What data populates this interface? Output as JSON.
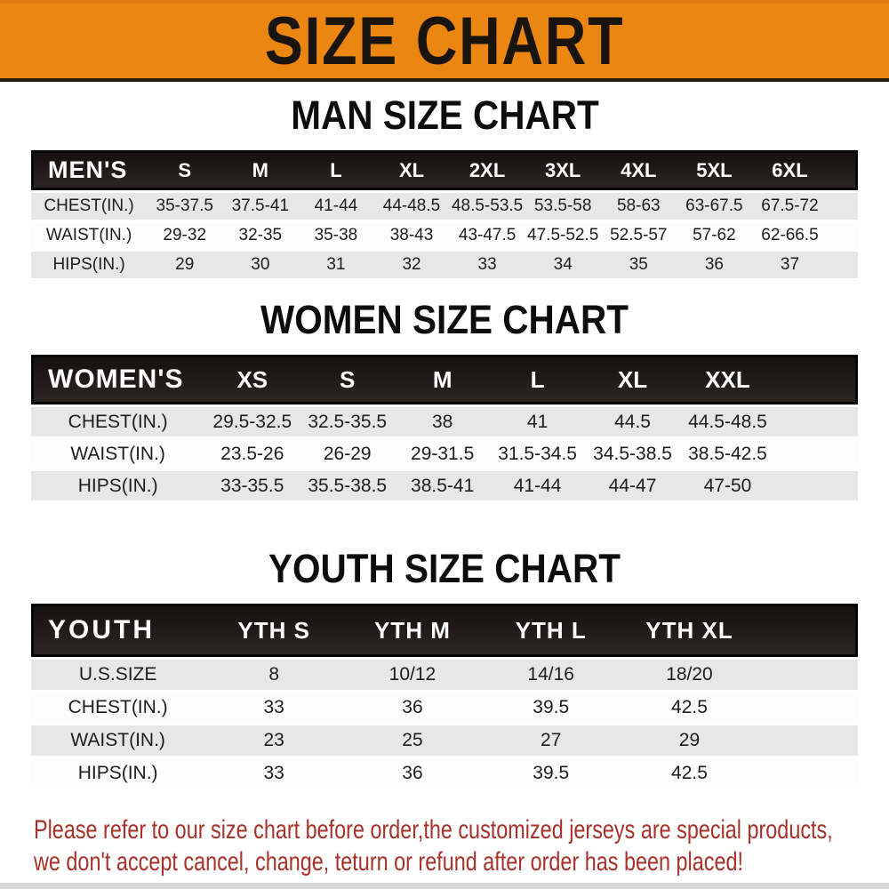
{
  "banner": {
    "title": "SIZE CHART",
    "bg_color": "#ec8612",
    "text_color": "#1a140f"
  },
  "colors": {
    "table_header_bg": "#1d1816",
    "row_gray": "#e7e7e7",
    "row_white": "#fcfcfc",
    "disclaimer_red": "#a63229"
  },
  "sections": [
    {
      "heading": "MAN SIZE CHART",
      "table": {
        "header": [
          "MEN'S",
          "S",
          "M",
          "L",
          "XL",
          "2XL",
          "3XL",
          "4XL",
          "5XL",
          "6XL"
        ],
        "rows": [
          [
            "CHEST(IN.)",
            "35-37.5",
            "37.5-41",
            "41-44",
            "44-48.5",
            "48.5-53.5",
            "53.5-58",
            "58-63",
            "63-67.5",
            "67.5-72"
          ],
          [
            "WAIST(IN.)",
            "29-32",
            "32-35",
            "35-38",
            "38-43",
            "43-47.5",
            "47.5-52.5",
            "52.5-57",
            "57-62",
            "62-66.5"
          ],
          [
            "HIPS(IN.)",
            "29",
            "30",
            "31",
            "32",
            "33",
            "34",
            "35",
            "36",
            "37"
          ]
        ]
      }
    },
    {
      "heading": "WOMEN SIZE CHART",
      "table": {
        "header": [
          "WOMEN'S",
          "XS",
          "S",
          "M",
          "L",
          "XL",
          "XXL"
        ],
        "rows": [
          [
            "CHEST(IN.)",
            "29.5-32.5",
            "32.5-35.5",
            "38",
            "41",
            "44.5",
            "44.5-48.5"
          ],
          [
            "WAIST(IN.)",
            "23.5-26",
            "26-29",
            "29-31.5",
            "31.5-34.5",
            "34.5-38.5",
            "38.5-42.5"
          ],
          [
            "HIPS(IN.)",
            "33-35.5",
            "35.5-38.5",
            "38.5-41",
            "41-44",
            "44-47",
            "47-50"
          ]
        ]
      }
    },
    {
      "heading": "YOUTH SIZE CHART",
      "table": {
        "header": [
          "YOUTH",
          "YTH S",
          "YTH M",
          "YTH L",
          "YTH XL"
        ],
        "rows": [
          [
            "U.S.SIZE",
            "8",
            "10/12",
            "14/16",
            "18/20"
          ],
          [
            "CHEST(IN.)",
            "33",
            "36",
            "39.5",
            "42.5"
          ],
          [
            "WAIST(IN.)",
            "23",
            "25",
            "27",
            "29"
          ],
          [
            "HIPS(IN.)",
            "33",
            "36",
            "39.5",
            "42.5"
          ]
        ]
      }
    }
  ],
  "disclaimer": {
    "line1": "Please refer to our size chart before order,the customized jerseys are special products,",
    "line2": "we don't accept cancel, change, teturn or refund after order has been placed!"
  }
}
